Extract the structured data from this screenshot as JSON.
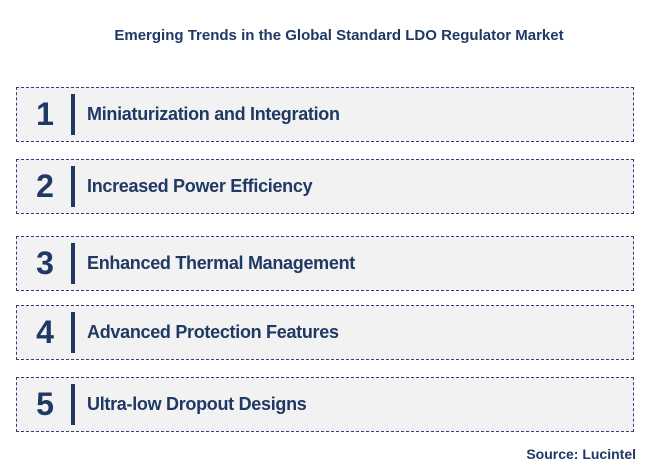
{
  "title": "Emerging Trends in the Global Standard LDO Regulator Market",
  "trends": [
    {
      "number": "1",
      "label": "Miniaturization and Integration"
    },
    {
      "number": "2",
      "label": "Increased Power Efficiency"
    },
    {
      "number": "3",
      "label": "Enhanced Thermal Management"
    },
    {
      "number": "4",
      "label": "Advanced Protection Features"
    },
    {
      "number": "5",
      "label": "Ultra-low Dropout Designs"
    }
  ],
  "source": "Source: Lucintel",
  "colors": {
    "text": "#1f3864",
    "box_fill": "#f2f2f2",
    "box_border": "#2f3f7a"
  }
}
